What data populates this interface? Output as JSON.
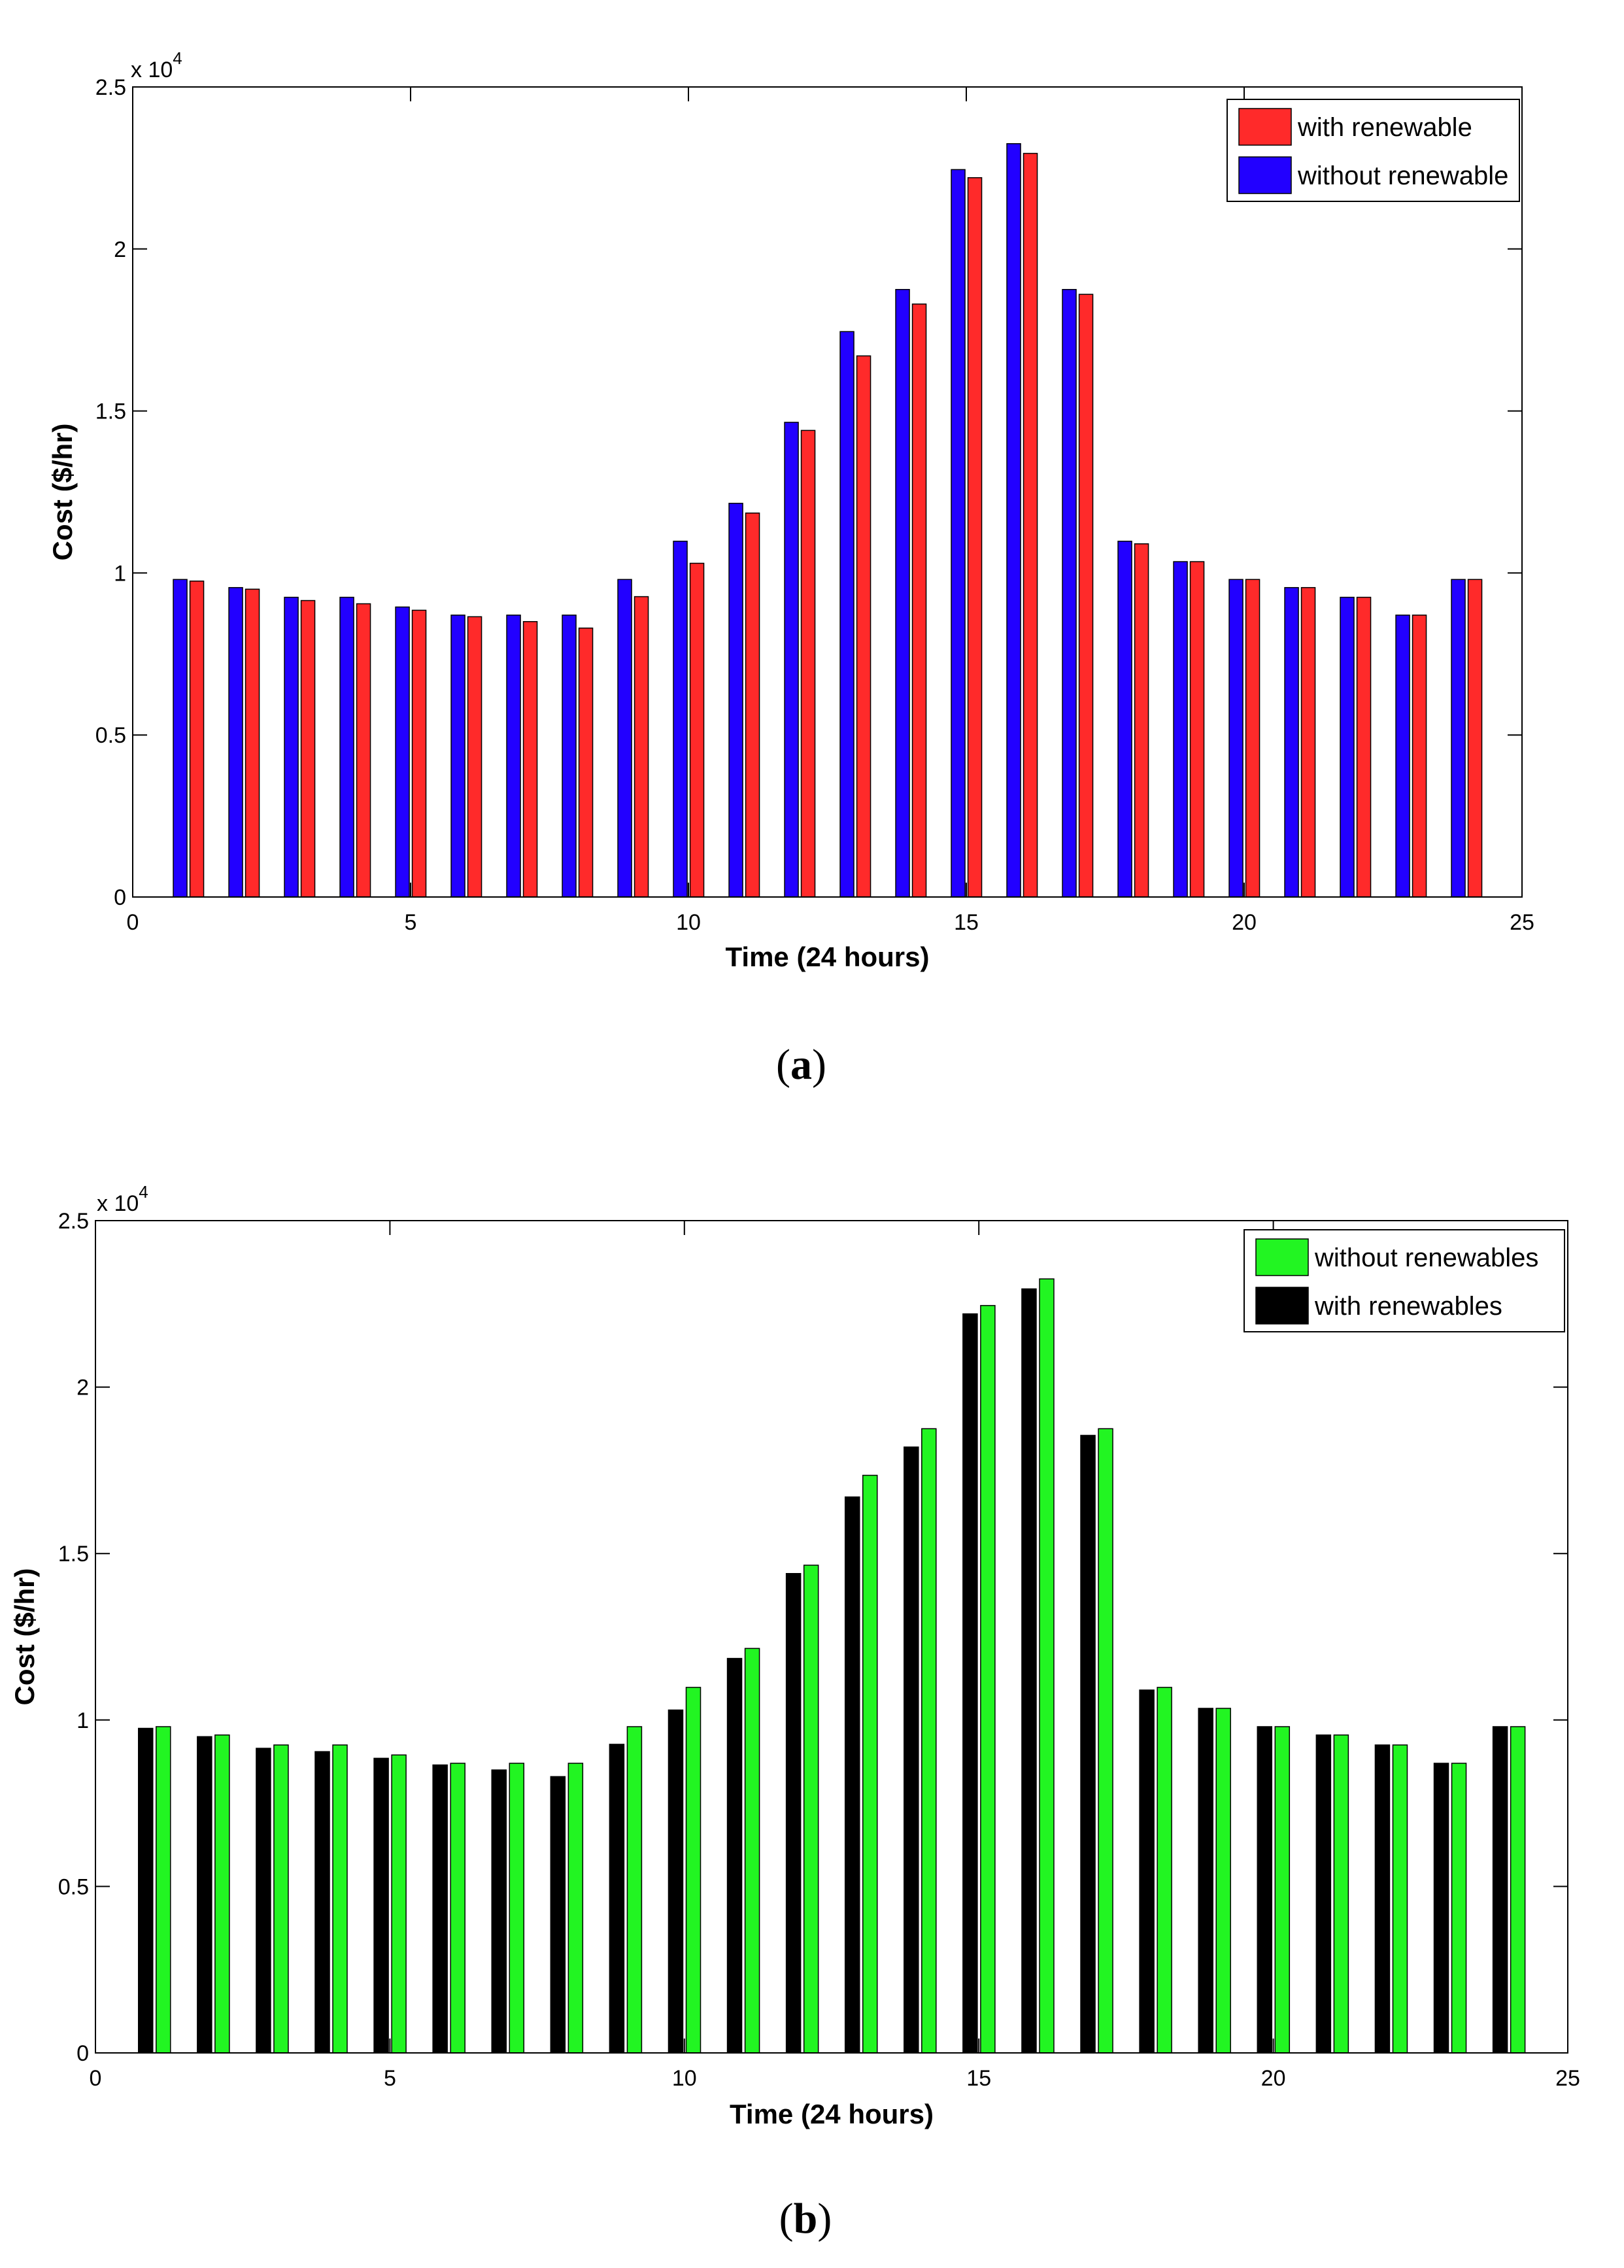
{
  "chart_data": [
    {
      "type": "bar",
      "panel_label": "(a)",
      "panel_letter": "a",
      "xlabel": "Time (24 hours)",
      "ylabel": "Cost ($/hr)",
      "multiplier_prefix": "x 10",
      "multiplier_exponent": "4",
      "xlim": [
        0,
        25
      ],
      "ylim": [
        0,
        25000
      ],
      "x_ticks": [
        0,
        5,
        10,
        15,
        20,
        25
      ],
      "x_tick_labels": [
        "0",
        "5",
        "10",
        "15",
        "20",
        "25"
      ],
      "y_ticks": [
        0,
        5000,
        10000,
        15000,
        20000,
        25000
      ],
      "y_tick_labels": [
        "0",
        "0.5",
        "1",
        "1.5",
        "2",
        "2.5"
      ],
      "legend_position": "top-right",
      "x": [
        1,
        2,
        3,
        4,
        5,
        6,
        7,
        8,
        9,
        10,
        11,
        12,
        13,
        14,
        15,
        16,
        17,
        18,
        19,
        20,
        21,
        22,
        23,
        24
      ],
      "series": [
        {
          "name": "without renewable",
          "color": "#2200ff",
          "offset": -0.27,
          "values": [
            9800,
            9550,
            9250,
            9250,
            8950,
            8700,
            8700,
            8700,
            9800,
            10980,
            12150,
            14650,
            17450,
            18750,
            22450,
            23250,
            18750,
            10980,
            10350,
            9800,
            9550,
            9250,
            8700,
            9800
          ]
        },
        {
          "name": "with renewable",
          "color": "#ff2a2a",
          "offset": 0.03,
          "values": [
            9750,
            9500,
            9150,
            9050,
            8850,
            8650,
            8500,
            8300,
            9270,
            10300,
            11850,
            14400,
            16700,
            18300,
            22200,
            22950,
            18600,
            10900,
            10350,
            9800,
            9550,
            9250,
            8700,
            9800
          ]
        }
      ],
      "legend": [
        {
          "name": "with renewable",
          "color": "#ff2a2a"
        },
        {
          "name": "without renewable",
          "color": "#2200ff"
        }
      ]
    },
    {
      "type": "bar",
      "panel_label": "(b)",
      "panel_letter": "b",
      "xlabel": "Time (24 hours)",
      "ylabel": "Cost ($/hr)",
      "multiplier_prefix": "x 10",
      "multiplier_exponent": "4",
      "xlim": [
        0,
        25
      ],
      "ylim": [
        0,
        25000
      ],
      "x_ticks": [
        0,
        5,
        10,
        15,
        20,
        25
      ],
      "x_tick_labels": [
        "0",
        "5",
        "10",
        "15",
        "20",
        "25"
      ],
      "y_ticks": [
        0,
        5000,
        10000,
        15000,
        20000,
        25000
      ],
      "y_tick_labels": [
        "0",
        "0.5",
        "1",
        "1.5",
        "2",
        "2.5"
      ],
      "legend_position": "top-right",
      "x": [
        1,
        2,
        3,
        4,
        5,
        6,
        7,
        8,
        9,
        10,
        11,
        12,
        13,
        14,
        15,
        16,
        17,
        18,
        19,
        20,
        21,
        22,
        23,
        24
      ],
      "series": [
        {
          "name": "with renewables",
          "color": "#000000",
          "offset": -0.27,
          "values": [
            9750,
            9500,
            9150,
            9050,
            8850,
            8650,
            8500,
            8300,
            9270,
            10300,
            11850,
            14400,
            16700,
            18200,
            22200,
            22950,
            18550,
            10900,
            10350,
            9800,
            9550,
            9250,
            8700,
            9800
          ]
        },
        {
          "name": "without renewables",
          "color": "#22f522",
          "offset": 0.03,
          "values": [
            9800,
            9550,
            9250,
            9250,
            8950,
            8700,
            8700,
            8700,
            9800,
            10980,
            12150,
            14650,
            17350,
            18750,
            22450,
            23250,
            18750,
            10980,
            10350,
            9800,
            9550,
            9250,
            8700,
            9800
          ]
        }
      ],
      "legend": [
        {
          "name": "without renewables",
          "color": "#22f522"
        },
        {
          "name": "with renewables",
          "color": "#000000"
        }
      ]
    }
  ]
}
